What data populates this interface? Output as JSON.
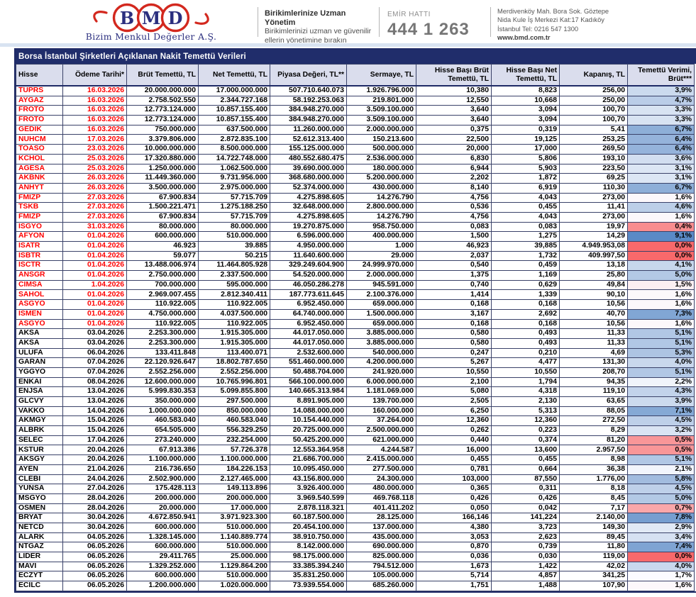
{
  "banner": {
    "logo": {
      "letters": [
        "B",
        "M",
        "D"
      ],
      "company": "Bizim Menkul Değerler A.Ş.",
      "red": "#d3281e",
      "navy": "#2b2f7f"
    },
    "slogan": {
      "title": "Birikimlerinize Uzman Yönetim",
      "line1": "Birikimlerinizi uzman ve güvenilir",
      "line2": "ellerin yönetimine bırakın"
    },
    "order_line": {
      "label": "EMİR HATTI",
      "number": "444 1 263"
    },
    "address": {
      "line1": "Merdivenköy Mah. Bora Sok. Göztepe",
      "line2": "Nida Kule İş Merkezi Kat:17 Kadıköy",
      "line3": "İstanbul    Tel: 0216 547 1300",
      "website": "www.bmd.com.tr"
    }
  },
  "table": {
    "title": "Borsa İstanbul Şirketleri Açıklanan Nakit Temettü Verileri",
    "columns": [
      "Hisse",
      "Ödeme Tarihi*",
      "Brüt Temettü, TL",
      "Net Temettü, TL",
      "Piyasa Değeri, TL**",
      "Sermaye, TL",
      "Hisse Başı Brüt Temettü, TL",
      "Hisse Başı Net Temettü, TL",
      "Kapanış, TL",
      "Temettü Verimi, Brüt***"
    ],
    "yield_color_scale": {
      "min_value": 0,
      "min_color": "#F8696B",
      "mid_value": 1.65,
      "mid_color": "#FCFCFF",
      "max_value": 9.1,
      "max_color": "#5A8AC6"
    },
    "red_text_color": "#fe0000",
    "rows": [
      {
        "red": true,
        "cells": [
          "TUPRS",
          "16.03.2026",
          "20.000.000.000",
          "17.000.000.000",
          "507.710.640.073",
          "1.926.796.000",
          "10,380",
          "8,823",
          "256,00",
          "3,9%"
        ]
      },
      {
        "red": true,
        "cells": [
          "AYGAZ",
          "16.03.2026",
          "2.758.502.550",
          "2.344.727.168",
          "58.192.253.063",
          "219.801.000",
          "12,550",
          "10,668",
          "250,00",
          "4,7%"
        ]
      },
      {
        "red": true,
        "cells": [
          "FROTO",
          "16.03.2026",
          "12.773.124.000",
          "10.857.155.400",
          "384.948.270.000",
          "3.509.100.000",
          "3,640",
          "3,094",
          "100,70",
          "3,3%"
        ]
      },
      {
        "red": true,
        "cells": [
          "FROTO",
          "16.03.2026",
          "12.773.124.000",
          "10.857.155.400",
          "384.948.270.000",
          "3.509.100.000",
          "3,640",
          "3,094",
          "100,70",
          "3,3%"
        ]
      },
      {
        "red": true,
        "cells": [
          "GEDIK",
          "16.03.2026",
          "750.000.000",
          "637.500.000",
          "11.260.000.000",
          "2.000.000.000",
          "0,375",
          "0,319",
          "5,41",
          "6,7%"
        ]
      },
      {
        "red": true,
        "cells": [
          "NUHCM",
          "17.03.2026",
          "3.379.806.000",
          "2.872.835.100",
          "52.612.313.400",
          "150.213.600",
          "22,500",
          "19,125",
          "253,25",
          "6,4%"
        ]
      },
      {
        "red": true,
        "cells": [
          "TOASO",
          "23.03.2026",
          "10.000.000.000",
          "8.500.000.000",
          "155.125.000.000",
          "500.000.000",
          "20,000",
          "17,000",
          "269,50",
          "6,4%"
        ]
      },
      {
        "red": true,
        "cells": [
          "KCHOL",
          "25.03.2026",
          "17.320.880.000",
          "14.722.748.000",
          "480.552.680.475",
          "2.536.000.000",
          "6,830",
          "5,806",
          "193,10",
          "3,6%"
        ]
      },
      {
        "red": true,
        "cells": [
          "AGESA",
          "25.03.2026",
          "1.250.000.000",
          "1.062.500.000",
          "39.690.000.000",
          "180.000.000",
          "6,944",
          "5,903",
          "223,50",
          "3,1%"
        ]
      },
      {
        "red": true,
        "cells": [
          "AKBNK",
          "26.03.2026",
          "11.449.360.000",
          "9.731.956.000",
          "368.680.000.000",
          "5.200.000.000",
          "2,202",
          "1,872",
          "69,25",
          "3,1%"
        ]
      },
      {
        "red": true,
        "cells": [
          "ANHYT",
          "26.03.2026",
          "3.500.000.000",
          "2.975.000.000",
          "52.374.000.000",
          "430.000.000",
          "8,140",
          "6,919",
          "110,30",
          "6,7%"
        ]
      },
      {
        "red": true,
        "cells": [
          "FMIZP",
          "27.03.2026",
          "67.900.834",
          "57.715.709",
          "4.275.898.605",
          "14.276.790",
          "4,756",
          "4,043",
          "273,00",
          "1,6%"
        ]
      },
      {
        "red": true,
        "cells": [
          "TSKB",
          "27.03.2026",
          "1.500.221.471",
          "1.275.188.250",
          "32.648.000.000",
          "2.800.000.000",
          "0,536",
          "0,455",
          "11,41",
          "4,6%"
        ]
      },
      {
        "red": true,
        "cells": [
          "FMIZP",
          "27.03.2026",
          "67.900.834",
          "57.715.709",
          "4.275.898.605",
          "14.276.790",
          "4,756",
          "4,043",
          "273,00",
          "1,6%"
        ]
      },
      {
        "red": true,
        "cells": [
          "ISGYO",
          "31.03.2026",
          "80.000.000",
          "80.000.000",
          "19.270.875.000",
          "958.750.000",
          "0,083",
          "0,083",
          "19,97",
          "0,4%"
        ]
      },
      {
        "red": true,
        "cells": [
          "AFYON",
          "01.04.2026",
          "600.000.000",
          "510.000.000",
          "6.596.000.000",
          "400.000.000",
          "1,500",
          "1,275",
          "14,29",
          "9,1%"
        ]
      },
      {
        "red": true,
        "cells": [
          "ISATR",
          "01.04.2026",
          "46.923",
          "39.885",
          "4.950.000.000",
          "1.000",
          "46,923",
          "39,885",
          "4.949.953,08",
          "0,0%"
        ]
      },
      {
        "red": true,
        "cells": [
          "ISBTR",
          "01.04.2026",
          "59.077",
          "50.215",
          "11.640.600.000",
          "29.000",
          "2,037",
          "1,732",
          "409.997,50",
          "0,0%"
        ]
      },
      {
        "red": true,
        "cells": [
          "ISCTR",
          "01.04.2026",
          "13.488.006.974",
          "11.464.805.928",
          "329.249.604.900",
          "24.999.970.000",
          "0,540",
          "0,459",
          "13,18",
          "4,1%"
        ]
      },
      {
        "red": true,
        "cells": [
          "ANSGR",
          "01.04.2026",
          "2.750.000.000",
          "2.337.500.000",
          "54.520.000.000",
          "2.000.000.000",
          "1,375",
          "1,169",
          "25,80",
          "5,0%"
        ]
      },
      {
        "red": true,
        "cells": [
          "CIMSA",
          "1.04.2026",
          "700.000.000",
          "595.000.000",
          "46.050.286.278",
          "945.591.000",
          "0,740",
          "0,629",
          "49,84",
          "1,5%"
        ]
      },
      {
        "red": true,
        "cells": [
          "SAHOL",
          "01.04.2026",
          "2.969.007.455",
          "2.812.340.411",
          "187.773.611.645",
          "2.100.376.000",
          "1,414",
          "1,339",
          "90,10",
          "1,6%"
        ]
      },
      {
        "red": true,
        "cells": [
          "ASGYO",
          "01.04.2026",
          "110.922.005",
          "110.922.005",
          "6.952.450.000",
          "659.000.000",
          "0,168",
          "0,168",
          "10,56",
          "1,6%"
        ]
      },
      {
        "red": true,
        "cells": [
          "ISMEN",
          "01.04.2026",
          "4.750.000.000",
          "4.037.500.000",
          "64.740.000.000",
          "1.500.000.000",
          "3,167",
          "2,692",
          "40,70",
          "7,3%"
        ]
      },
      {
        "red": true,
        "cells": [
          "ASGYO",
          "01.04.2026",
          "110.922.005",
          "110.922.005",
          "6.952.450.000",
          "659.000.000",
          "0,168",
          "0,168",
          "10,56",
          "1,6%"
        ]
      },
      {
        "red": false,
        "cells": [
          "AKSA",
          "03.04.2026",
          "2.253.300.000",
          "1.915.305.000",
          "44.017.050.000",
          "3.885.000.000",
          "0,580",
          "0,493",
          "11,33",
          "5,1%"
        ]
      },
      {
        "red": false,
        "cells": [
          "AKSA",
          "03.04.2026",
          "2.253.300.000",
          "1.915.305.000",
          "44.017.050.000",
          "3.885.000.000",
          "0,580",
          "0,493",
          "11,33",
          "5,1%"
        ]
      },
      {
        "red": false,
        "cells": [
          "ULUFA",
          "06.04.2026",
          "133.411.848",
          "113.400.071",
          "2.532.600.000",
          "540.000.000",
          "0,247",
          "0,210",
          "4,69",
          "5,3%"
        ]
      },
      {
        "red": false,
        "cells": [
          "GARAN",
          "07.04.2026",
          "22.120.926.647",
          "18.802.787.650",
          "551.460.000.000",
          "4.200.000.000",
          "5,267",
          "4,477",
          "131,30",
          "4,0%"
        ]
      },
      {
        "red": false,
        "cells": [
          "YGGYO",
          "07.04.2026",
          "2.552.256.000",
          "2.552.256.000",
          "50.488.704.000",
          "241.920.000",
          "10,550",
          "10,550",
          "208,70",
          "5,1%"
        ]
      },
      {
        "red": false,
        "cells": [
          "ENKAI",
          "08.04.2026",
          "12.600.000.000",
          "10.765.996.801",
          "566.100.000.000",
          "6.000.000.000",
          "2,100",
          "1,794",
          "94,35",
          "2,2%"
        ]
      },
      {
        "red": false,
        "cells": [
          "ENJSA",
          "13.04.2026",
          "5.999.830.353",
          "5.099.855.800",
          "140.665.313.984",
          "1.181.069.000",
          "5,080",
          "4,318",
          "119,10",
          "4,3%"
        ]
      },
      {
        "red": false,
        "cells": [
          "GLCVY",
          "13.04.2026",
          "350.000.000",
          "297.500.000",
          "8.891.905.000",
          "139.700.000",
          "2,505",
          "2,130",
          "63,65",
          "3,9%"
        ]
      },
      {
        "red": false,
        "cells": [
          "VAKKO",
          "14.04.2026",
          "1.000.000.000",
          "850.000.000",
          "14.088.000.000",
          "160.000.000",
          "6,250",
          "5,313",
          "88,05",
          "7,1%"
        ]
      },
      {
        "red": false,
        "cells": [
          "AKMGY",
          "15.04.2026",
          "460.583.040",
          "460.583.040",
          "10.154.440.000",
          "37.264.000",
          "12,360",
          "12,360",
          "272,50",
          "4,5%"
        ]
      },
      {
        "red": false,
        "cells": [
          "ALBRK",
          "15.04.2026",
          "654.505.000",
          "556.329.250",
          "20.725.000.000",
          "2.500.000.000",
          "0,262",
          "0,223",
          "8,29",
          "3,2%"
        ]
      },
      {
        "red": false,
        "cells": [
          "SELEC",
          "17.04.2026",
          "273.240.000",
          "232.254.000",
          "50.425.200.000",
          "621.000.000",
          "0,440",
          "0,374",
          "81,20",
          "0,5%"
        ]
      },
      {
        "red": false,
        "cells": [
          "KSTUR",
          "20.04.2026",
          "67.913.386",
          "57.726.378",
          "12.553.364.958",
          "4.244.587",
          "16,000",
          "13,600",
          "2.957,50",
          "0,5%"
        ]
      },
      {
        "red": false,
        "cells": [
          "AKSGY",
          "20.04.2026",
          "1.100.000.000",
          "1.100.000.000",
          "21.686.700.000",
          "2.415.000.000",
          "0,455",
          "0,455",
          "8,98",
          "5,1%"
        ]
      },
      {
        "red": false,
        "cells": [
          "AYEN",
          "21.04.2026",
          "216.736.650",
          "184.226.153",
          "10.095.450.000",
          "277.500.000",
          "0,781",
          "0,664",
          "36,38",
          "2,1%"
        ]
      },
      {
        "red": false,
        "cells": [
          "CLEBI",
          "24.04.2026",
          "2.502.900.000",
          "2.127.465.000",
          "43.156.800.000",
          "24.300.000",
          "103,000",
          "87,550",
          "1.776,00",
          "5,8%"
        ]
      },
      {
        "red": false,
        "cells": [
          "YUNSA",
          "27.04.2026",
          "175.428.113",
          "149.113.896",
          "3.926.400.000",
          "480.000.000",
          "0,365",
          "0,311",
          "8,18",
          "4,5%"
        ]
      },
      {
        "red": false,
        "cells": [
          "MSGYO",
          "28.04.2026",
          "200.000.000",
          "200.000.000",
          "3.969.540.599",
          "469.768.118",
          "0,426",
          "0,426",
          "8,45",
          "5,0%"
        ]
      },
      {
        "red": false,
        "cells": [
          "OSMEN",
          "28.04.2026",
          "20.000.000",
          "17.000.000",
          "2.878.118.321",
          "401.411.202",
          "0,050",
          "0,042",
          "7,17",
          "0,7%"
        ]
      },
      {
        "red": false,
        "cells": [
          "BRYAT",
          "30.04.2026",
          "4.672.850.941",
          "3.971.923.300",
          "60.187.500.000",
          "28.125.000",
          "166,146",
          "141,224",
          "2.140,00",
          "7,8%"
        ]
      },
      {
        "red": false,
        "cells": [
          "NETCD",
          "30.04.2026",
          "600.000.000",
          "510.000.000",
          "20.454.100.000",
          "137.000.000",
          "4,380",
          "3,723",
          "149,30",
          "2,9%"
        ]
      },
      {
        "red": false,
        "cells": [
          "ALARK",
          "04.05.2026",
          "1.328.145.000",
          "1.140.889.774",
          "38.910.750.000",
          "435.000.000",
          "3,053",
          "2,623",
          "89,45",
          "3,4%"
        ]
      },
      {
        "red": false,
        "cells": [
          "NTGAZ",
          "06.05.2026",
          "600.000.000",
          "510.000.000",
          "8.142.000.000",
          "690.000.000",
          "0,870",
          "0,739",
          "11,80",
          "7,4%"
        ]
      },
      {
        "red": false,
        "cells": [
          "LIDER",
          "06.05.2026",
          "29.411.765",
          "25.000.000",
          "98.175.000.000",
          "825.000.000",
          "0,036",
          "0,030",
          "119,00",
          "0,0%"
        ]
      },
      {
        "red": false,
        "cells": [
          "MAVI",
          "06.05.2026",
          "1.329.252.000",
          "1.129.864.200",
          "33.385.394.240",
          "794.512.000",
          "1,673",
          "1,422",
          "42,02",
          "4,0%"
        ]
      },
      {
        "red": false,
        "cells": [
          "ECZYT",
          "06.05.2026",
          "600.000.000",
          "510.000.000",
          "35.831.250.000",
          "105.000.000",
          "5,714",
          "4,857",
          "341,25",
          "1,7%"
        ]
      },
      {
        "red": false,
        "cells": [
          "ECILC",
          "06.05.2026",
          "1.200.000.000",
          "1.020.000.000",
          "73.939.554.000",
          "685.260.000",
          "1,751",
          "1,488",
          "107,90",
          "1,6%"
        ]
      }
    ]
  }
}
